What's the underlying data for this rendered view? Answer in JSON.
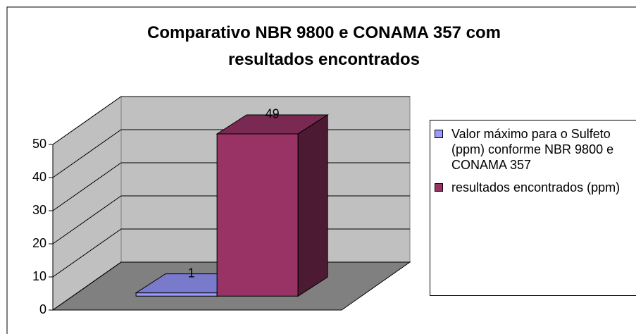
{
  "chart_data": {
    "type": "bar3d",
    "title": "Comparativo NBR 9800 e CONAMA 357 com resultados encontrados",
    "categories": [
      null
    ],
    "series": [
      {
        "name": "Valor máximo para o Sulfeto (ppm) conforme NBR 9800 e CONAMA 357",
        "color": "#9999ff",
        "values": [
          1
        ]
      },
      {
        "name": "resultados encontrados (ppm)",
        "color": "#993366",
        "values": [
          49
        ]
      }
    ],
    "ylim": [
      0,
      50
    ],
    "yticks": [
      0,
      10,
      20,
      30,
      40,
      50
    ],
    "grid": true,
    "legend": "right"
  }
}
